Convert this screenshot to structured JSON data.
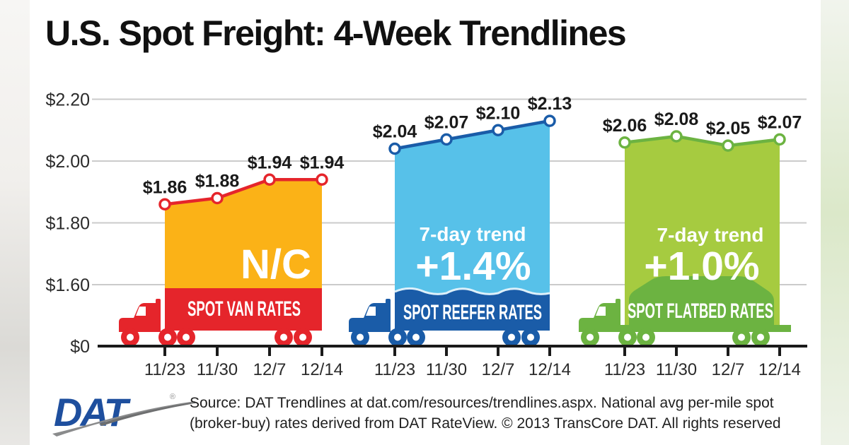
{
  "title": "U.S. Spot Freight: 4-Week Trendlines",
  "footer": {
    "logo_text": "DAT",
    "logo_reg_mark": "®",
    "source_line1": "Source: DAT Trendlines at dat.com/resources/trendlines.aspx. National avg per-mile spot",
    "source_line2": "(broker-buy) rates derived from DAT RateView. © 2013 TransCore DAT. All rights reserved"
  },
  "chart_data": {
    "type": "area",
    "title": "U.S. Spot Freight: 4-Week Trendlines",
    "x_labels": [
      "11/23",
      "11/30",
      "12/7",
      "12/14"
    ],
    "y_tick_labels": [
      "$2.20",
      "$2.00",
      "$1.80",
      "$1.60",
      "$0"
    ],
    "y_axis_note": "axis compressed between $0 and $1.60",
    "grid": true,
    "legend_position": "labels on truck trailers",
    "colors": {
      "grid": "#cbcbcb",
      "axis": "#1a1a1a",
      "label_text": "#1a1a1a",
      "reefer_wave_highlight": "#ddf0fa"
    },
    "series": [
      {
        "name": "Spot Van Rates",
        "band_label": "SPOT VAN RATES",
        "trend_label": "",
        "trend_value": "N/C",
        "values": [
          1.86,
          1.88,
          1.94,
          1.94
        ],
        "point_labels": [
          "$1.86",
          "$1.88",
          "$1.94",
          "$1.94"
        ],
        "fill_color": "#FBB217",
        "accent_color": "#E5252B",
        "truck": "van"
      },
      {
        "name": "Spot Reefer Rates",
        "band_label": "SPOT REEFER RATES",
        "trend_label": "7-day trend",
        "trend_value": "+1.4%",
        "values": [
          2.04,
          2.07,
          2.1,
          2.13
        ],
        "point_labels": [
          "$2.04",
          "$2.07",
          "$2.10",
          "$2.13"
        ],
        "fill_color": "#57C1E9",
        "accent_color": "#1A5CA8",
        "truck": "reefer"
      },
      {
        "name": "Spot Flatbed Rates",
        "band_label": "SPOT FLATBED RATES",
        "trend_label": "7-day trend",
        "trend_value": "+1.0%",
        "values": [
          2.06,
          2.08,
          2.05,
          2.07
        ],
        "point_labels": [
          "$2.06",
          "$2.08",
          "$2.05",
          "$2.07"
        ],
        "fill_color": "#A6CB40",
        "accent_color": "#6CB341",
        "truck": "flatbed"
      }
    ]
  }
}
